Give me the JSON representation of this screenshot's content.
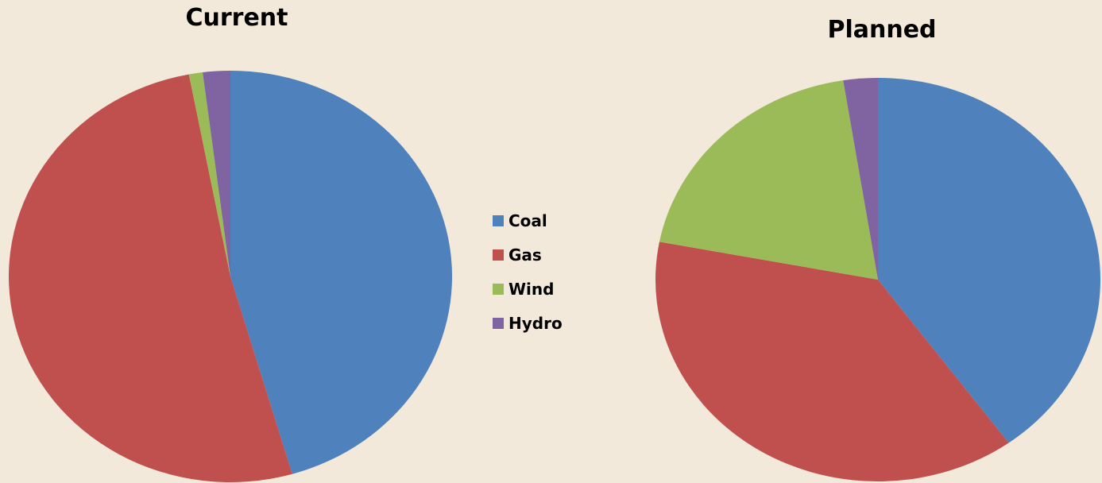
{
  "chart_data": [
    {
      "type": "pie",
      "title": "Current",
      "categories": [
        "Coal",
        "Gas",
        "Wind",
        "Hydro"
      ],
      "values": [
        45.5,
        51.5,
        1.0,
        2.0
      ],
      "colors": [
        "#4f81bd",
        "#c0504d",
        "#9bbb59",
        "#8064a2"
      ]
    },
    {
      "type": "pie",
      "title": "Planned",
      "categories": [
        "Coal",
        "Gas",
        "Wind",
        "Hydro"
      ],
      "values": [
        40,
        38,
        19.5,
        2.5
      ],
      "colors": [
        "#4f81bd",
        "#c0504d",
        "#9bbb59",
        "#8064a2"
      ]
    }
  ],
  "legend": {
    "placement": "center",
    "items": [
      {
        "label": "Coal",
        "color": "#4f81bd"
      },
      {
        "label": "Gas",
        "color": "#c0504d"
      },
      {
        "label": "Wind",
        "color": "#9bbb59"
      },
      {
        "label": "Hydro",
        "color": "#8064a2"
      }
    ]
  }
}
